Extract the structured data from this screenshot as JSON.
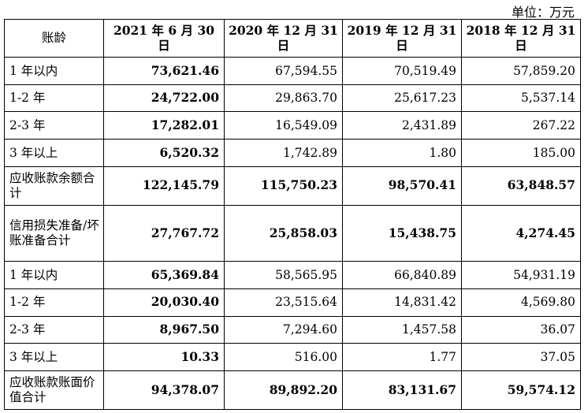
{
  "unit_label": "单位：万元",
  "headers": [
    "账龄",
    "2021 年 6 月 30 日",
    "2020 年 12 月 31 日",
    "2019 年 12 月 31 日",
    "2018 年 12 月 31 日"
  ],
  "rows": [
    {
      "label": "1 年以内",
      "values": [
        "73,621.46",
        "67,594.55",
        "70,519.49",
        "57,859.20"
      ]
    },
    {
      "label": "1-2 年",
      "values": [
        "24,722.00",
        "29,863.70",
        "25,617.23",
        "5,537.14"
      ]
    },
    {
      "label": "2-3 年",
      "values": [
        "17,282.01",
        "16,549.09",
        "2,431.89",
        "267.22"
      ]
    },
    {
      "label": "3 年以上",
      "values": [
        "6,520.32",
        "1,742.89",
        "1.80",
        "185.00"
      ]
    },
    {
      "label": "应收账款余额合计",
      "values": [
        "122,145.79",
        "115,750.23",
        "98,570.41",
        "63,848.57"
      ]
    },
    {
      "label": "信用损失准备/坏账准备合计",
      "values": [
        "27,767.72",
        "25,858.03",
        "15,438.75",
        "4,274.45"
      ]
    },
    {
      "label": "1 年以内",
      "values": [
        "65,369.84",
        "58,565.95",
        "66,840.89",
        "54,931.19"
      ]
    },
    {
      "label": "1-2 年",
      "values": [
        "20,030.40",
        "23,515.64",
        "14,831.42",
        "4,569.80"
      ]
    },
    {
      "label": "2-3 年",
      "values": [
        "8,967.50",
        "7,294.60",
        "1,457.58",
        "36.07"
      ]
    },
    {
      "label": "3 年以上",
      "values": [
        "10.33",
        "516.00",
        "1.77",
        "37.05"
      ]
    },
    {
      "label": "应收账款账面价值合计",
      "values": [
        "94,378.07",
        "89,892.20",
        "83,131.67",
        "59,574.12"
      ]
    }
  ]
}
